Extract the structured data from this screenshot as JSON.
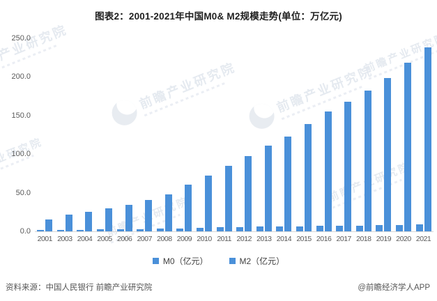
{
  "title": "图表2：2001-2021年中国M0& M2规模走势(单位：万亿元)",
  "chart_data": {
    "type": "bar",
    "title": "图表2：2001-2021年中国M0& M2规模走势(单位：万亿元)",
    "categories": [
      "2001",
      "2003",
      "2004",
      "2005",
      "2006",
      "2007",
      "2008",
      "2009",
      "2010",
      "2011",
      "2012",
      "2013",
      "2014",
      "2015",
      "2016",
      "2017",
      "2018",
      "2019",
      "2020",
      "2021"
    ],
    "series": [
      {
        "name": "M0（亿元）",
        "values": [
          1.6,
          2.0,
          2.1,
          2.4,
          2.7,
          3.0,
          3.4,
          3.8,
          4.5,
          5.1,
          5.5,
          5.9,
          6.0,
          6.3,
          6.8,
          7.1,
          7.3,
          7.7,
          8.4,
          9.1
        ]
      },
      {
        "name": "M2（亿元）",
        "values": [
          15.8,
          21.9,
          25.0,
          29.9,
          34.6,
          40.3,
          47.5,
          60.6,
          72.6,
          85.2,
          97.4,
          110.7,
          122.8,
          139.2,
          155.0,
          167.7,
          182.7,
          198.7,
          218.7,
          238.3
        ]
      }
    ],
    "xlabel": "",
    "ylabel": "",
    "ylim": [
      0,
      250
    ],
    "yticks": [
      250,
      200,
      150,
      100,
      50,
      0
    ],
    "ytick_format": "one_decimal",
    "grid": false,
    "legend_position": "bottom",
    "bar_color": "#4a90d9"
  },
  "legend": {
    "items": [
      {
        "label": "M0（亿元）"
      },
      {
        "label": "M2（亿元）"
      }
    ],
    "swatch_color": "#4a90d9"
  },
  "footer": {
    "source": "资料来源：中国人民银行 前瞻产业研究院",
    "credit": "@前瞻经济学人APP"
  },
  "watermark": {
    "text": "前瞻产业研究院"
  },
  "colors": {
    "bar": "#4a90d9",
    "title_text": "#1f1f1f",
    "axis_text": "#595959",
    "watermark": "#e3e8ef"
  }
}
